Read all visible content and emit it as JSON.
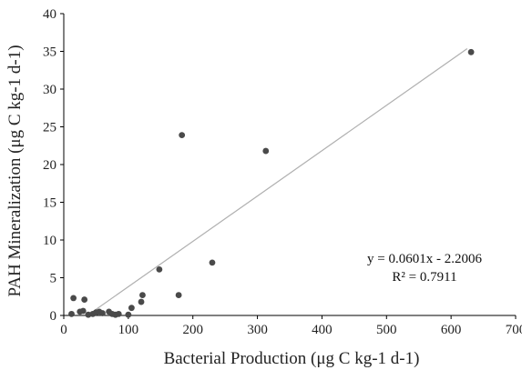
{
  "chart_data": {
    "type": "scatter",
    "xlabel": "Bacterial Production (μg C kg-1 d-1)",
    "ylabel": "PAH Mineralization (μg C kg-1 d-1)",
    "xlim": [
      0,
      700
    ],
    "ylim": [
      0,
      40
    ],
    "x_ticks": [
      "0",
      "100",
      "200",
      "300",
      "400",
      "500",
      "600",
      "700"
    ],
    "y_ticks": [
      "0",
      "5",
      "10",
      "15",
      "20",
      "25",
      "30",
      "35",
      "40"
    ],
    "grid": false,
    "legend": "none",
    "colors": {
      "points": "#4a4a4a",
      "trendline": "#b0b0b0",
      "axis": "#000000",
      "text": "#222222"
    },
    "points": [
      {
        "x": 12,
        "y": 0.2
      },
      {
        "x": 15,
        "y": 2.3
      },
      {
        "x": 25,
        "y": 0.5
      },
      {
        "x": 30,
        "y": 0.6
      },
      {
        "x": 32,
        "y": 2.1
      },
      {
        "x": 38,
        "y": 0.1
      },
      {
        "x": 45,
        "y": 0.2
      },
      {
        "x": 50,
        "y": 0.4
      },
      {
        "x": 55,
        "y": 0.5
      },
      {
        "x": 60,
        "y": 0.3
      },
      {
        "x": 70,
        "y": 0.5
      },
      {
        "x": 75,
        "y": 0.2
      },
      {
        "x": 80,
        "y": 0.1
      },
      {
        "x": 85,
        "y": 0.2
      },
      {
        "x": 100,
        "y": 0.1
      },
      {
        "x": 105,
        "y": 1.0
      },
      {
        "x": 120,
        "y": 1.8
      },
      {
        "x": 122,
        "y": 2.7
      },
      {
        "x": 148,
        "y": 6.1
      },
      {
        "x": 178,
        "y": 2.7
      },
      {
        "x": 183,
        "y": 23.9
      },
      {
        "x": 230,
        "y": 7.0
      },
      {
        "x": 313,
        "y": 21.8
      },
      {
        "x": 631,
        "y": 34.9
      }
    ],
    "trendline": {
      "slope": 0.0601,
      "intercept": -2.2006,
      "x_range": [
        36.6,
        625
      ]
    },
    "annotation": {
      "equation": "y = 0.0601x - 2.2006",
      "r_squared": "R² = 0.7911"
    }
  }
}
